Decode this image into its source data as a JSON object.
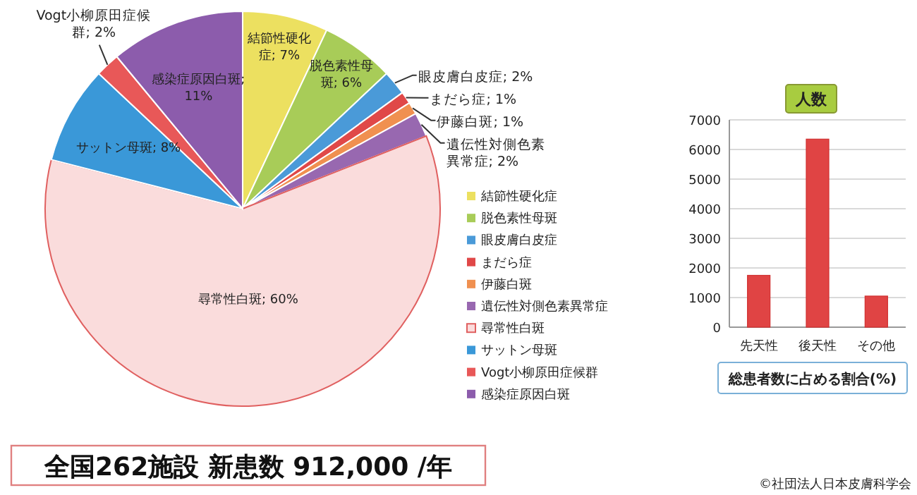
{
  "chart_data": [
    {
      "type": "pie",
      "categories": [
        "結節性硬化症",
        "脱色素性母斑",
        "眼皮膚白皮症",
        "まだら症",
        "伊藤白斑",
        "遺伝性対側色素異常症",
        "尋常性白斑",
        "サットン母斑",
        "Vogt小柳原田症候群",
        "感染症原因白斑"
      ],
      "values": [
        7,
        6,
        2,
        1,
        1,
        2,
        60,
        8,
        2,
        11
      ],
      "colors": [
        "#ece060",
        "#a8cc58",
        "#4a9ad8",
        "#e04848",
        "#f09050",
        "#9868b0",
        "#fadcdc",
        "#3a98d8",
        "#e85858",
        "#8c5cac"
      ],
      "value_labels": [
        "結節性硬化症; 7%",
        "脱色素性母斑; 6%",
        "眼皮膚白皮症; 2%",
        "まだら症; 1%",
        "伊藤白斑; 1%",
        "遺伝性対側色素異常症; 2%",
        "尋常性白斑; 60%",
        "サットン母斑; 8%",
        "Vogt小柳原田症候群; 2%",
        "感染症原因白斑; 11%"
      ],
      "legend": "right",
      "annotations": [
        "全国262施設 新患数 912,000 /年",
        "©社団法人日本皮膚科学会"
      ]
    },
    {
      "type": "bar",
      "title": "人数",
      "xlabel": "総患者数に占める割合(%)",
      "categories": [
        "先天性",
        "後天性",
        "その他"
      ],
      "values": [
        1750,
        6350,
        1050
      ],
      "color": "#e04444",
      "ylim": [
        0,
        7000
      ],
      "yticks": [
        0,
        1000,
        2000,
        3000,
        4000,
        5000,
        6000,
        7000
      ],
      "grid": "y"
    }
  ]
}
